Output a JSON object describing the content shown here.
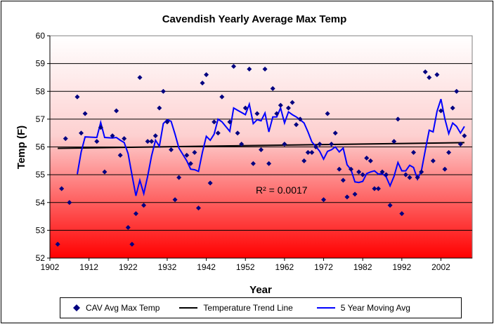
{
  "chart_data": {
    "type": "scatter",
    "title": "Cavendish Yearly Average Max Temp",
    "xlabel": "Year",
    "ylabel": "Temp (F)",
    "xlim": [
      1902,
      2010
    ],
    "ylim": [
      52,
      60
    ],
    "xticks": [
      1902,
      1912,
      1922,
      1932,
      1942,
      1952,
      1962,
      1972,
      1982,
      1992,
      2002
    ],
    "yticks": [
      52,
      53,
      54,
      55,
      56,
      57,
      58,
      59,
      60
    ],
    "grid": true,
    "legend_position": "bottom",
    "annotation": "R² = 0.0017",
    "background": "gradient white (top) to red (bottom)",
    "colors": {
      "points": "#000080",
      "trend": "#000000",
      "moving_avg": "#0000ff",
      "gradient_bottom": "#ff0000"
    },
    "series": [
      {
        "name": "CAV Avg Max Temp",
        "type": "scatter",
        "x": [
          1904,
          1905,
          1906,
          1907,
          1909,
          1910,
          1911,
          1914,
          1915,
          1916,
          1918,
          1919,
          1920,
          1921,
          1922,
          1923,
          1924,
          1925,
          1926,
          1927,
          1928,
          1929,
          1930,
          1931,
          1932,
          1933,
          1934,
          1935,
          1937,
          1938,
          1939,
          1940,
          1941,
          1942,
          1943,
          1944,
          1945,
          1946,
          1948,
          1949,
          1950,
          1951,
          1952,
          1953,
          1954,
          1955,
          1956,
          1957,
          1958,
          1959,
          1960,
          1961,
          1962,
          1963,
          1964,
          1965,
          1966,
          1967,
          1968,
          1969,
          1970,
          1971,
          1972,
          1973,
          1974,
          1975,
          1976,
          1977,
          1978,
          1979,
          1980,
          1981,
          1982,
          1983,
          1984,
          1985,
          1986,
          1987,
          1988,
          1989,
          1990,
          1991,
          1992,
          1993,
          1994,
          1995,
          1996,
          1997,
          1998,
          1999,
          2000,
          2001,
          2002,
          2003,
          2004,
          2005,
          2006,
          2007,
          2008
        ],
        "y": [
          52.5,
          54.5,
          56.3,
          54.0,
          57.8,
          56.5,
          57.2,
          56.2,
          56.7,
          55.1,
          56.4,
          57.3,
          55.7,
          56.3,
          53.1,
          52.5,
          53.6,
          58.5,
          53.9,
          56.2,
          56.2,
          56.4,
          57.4,
          58.0,
          56.9,
          55.9,
          54.1,
          54.9,
          55.7,
          55.4,
          55.8,
          53.8,
          58.3,
          58.6,
          54.7,
          56.9,
          56.5,
          57.8,
          56.9,
          58.9,
          56.5,
          56.1,
          57.4,
          58.8,
          55.4,
          57.2,
          55.9,
          58.8,
          55.4,
          58.1,
          57.2,
          57.5,
          56.1,
          57.4,
          57.6,
          56.8,
          57.0,
          55.5,
          55.8,
          55.8,
          56.0,
          56.1,
          54.1,
          57.2,
          56.1,
          56.5,
          55.2,
          54.8,
          54.2,
          55.2,
          54.3,
          55.1,
          55.0,
          55.6,
          55.5,
          54.5,
          54.5,
          55.1,
          55.0,
          53.9,
          56.2,
          57.0,
          53.6,
          55.0,
          54.9,
          55.8,
          54.9,
          55.1,
          58.7,
          58.5,
          55.5,
          58.6,
          57.3,
          55.2,
          55.8,
          57.4,
          58.0,
          56.1,
          56.4
        ]
      },
      {
        "name": "Temperature Trend Line",
        "type": "linear-trend"
      },
      {
        "name": "5 Year Moving Avg",
        "type": "moving-average",
        "period": 5
      }
    ]
  }
}
